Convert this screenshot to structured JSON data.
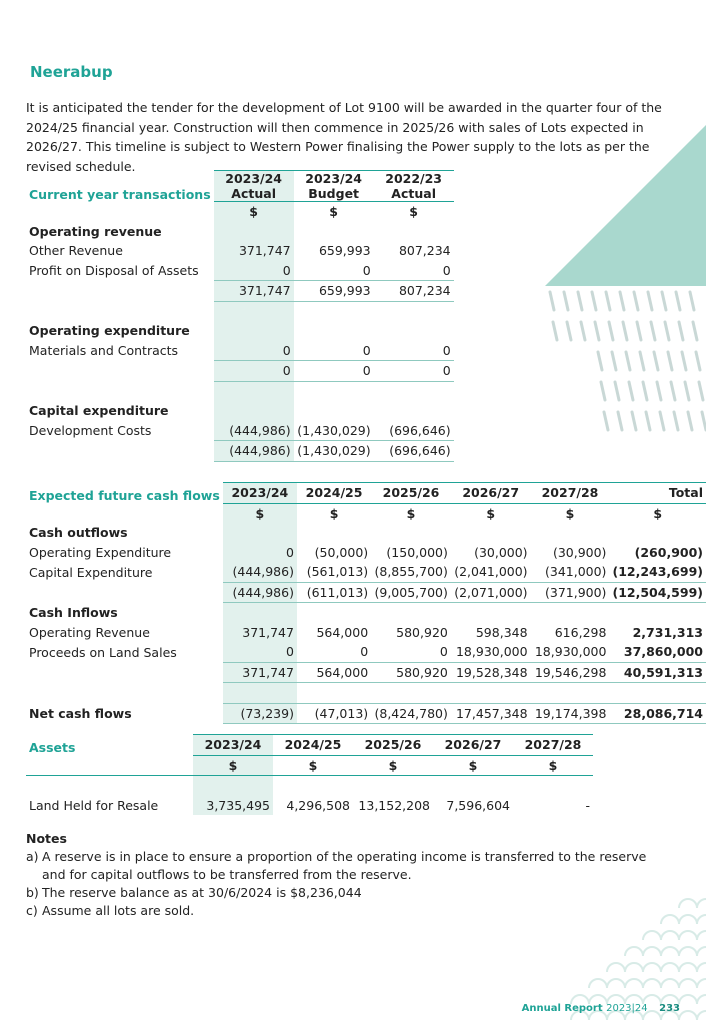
{
  "heading": "Neerabup",
  "intro": "It is anticipated the tender for the development of Lot 9100 will be awarded in the quarter four of the 2024/25 financial year.  Construction will then commence in 2025/26 with sales of Lots expected in 2026/27. This timeline is subject to Western Power finalising the Power supply to the lots as per the revised schedule.",
  "current": {
    "label": "Current year transactions",
    "columns": [
      {
        "year": "2023/24",
        "kind": "Actual"
      },
      {
        "year": "2023/24",
        "kind": "Budget"
      },
      {
        "year": "2022/23",
        "kind": "Actual"
      }
    ],
    "units": [
      "$",
      "$",
      "$"
    ],
    "sections": [
      {
        "heading": "Operating revenue",
        "rows": [
          {
            "label": "Other Revenue",
            "values": [
              "371,747",
              "659,993",
              "807,234"
            ]
          },
          {
            "label": "Profit on Disposal of Assets",
            "values": [
              "0",
              "0",
              "0"
            ]
          }
        ],
        "total": [
          "371,747",
          "659,993",
          "807,234"
        ]
      },
      {
        "heading": "Operating expenditure",
        "rows": [
          {
            "label": "Materials and Contracts",
            "values": [
              "0",
              "0",
              "0"
            ]
          }
        ],
        "total": [
          "0",
          "0",
          "0"
        ]
      },
      {
        "heading": "Capital expenditure",
        "rows": [
          {
            "label": "Development Costs",
            "values": [
              "(444,986)",
              "(1,430,029)",
              "(696,646)"
            ]
          }
        ],
        "total": [
          "(444,986)",
          "(1,430,029)",
          "(696,646)"
        ]
      }
    ]
  },
  "future": {
    "label": "Expected future cash flows",
    "columns": [
      "2023/24",
      "2024/25",
      "2025/26",
      "2026/27",
      "2027/28",
      "Total"
    ],
    "units": [
      "$",
      "$",
      "$",
      "$",
      "$",
      "$"
    ],
    "sections": [
      {
        "heading": "Cash outflows",
        "rows": [
          {
            "label": "Operating Expenditure",
            "values": [
              "0",
              "(50,000)",
              "(150,000)",
              "(30,000)",
              "(30,900)",
              "(260,900)"
            ]
          },
          {
            "label": "Capital Expenditure",
            "values": [
              "(444,986)",
              "(561,013)",
              "(8,855,700)",
              "(2,041,000)",
              "(341,000)",
              "(12,243,699)"
            ]
          }
        ],
        "total": [
          "(444,986)",
          "(611,013)",
          "(9,005,700)",
          "(2,071,000)",
          "(371,900)",
          "(12,504,599)"
        ]
      },
      {
        "heading": "Cash Inflows",
        "rows": [
          {
            "label": "Operating Revenue",
            "values": [
              "371,747",
              "564,000",
              "580,920",
              "598,348",
              "616,298",
              "2,731,313"
            ]
          },
          {
            "label": "Proceeds on Land Sales",
            "values": [
              "0",
              "0",
              "0",
              "18,930,000",
              "18,930,000",
              "37,860,000"
            ]
          }
        ],
        "total": [
          "371,747",
          "564,000",
          "580,920",
          "19,528,348",
          "19,546,298",
          "40,591,313"
        ]
      }
    ],
    "net": {
      "label": "Net cash flows",
      "values": [
        "(73,239)",
        "(47,013)",
        "(8,424,780)",
        "17,457,348",
        "19,174,398",
        "28,086,714"
      ]
    }
  },
  "assets": {
    "label": "Assets",
    "columns": [
      "2023/24",
      "2024/25",
      "2025/26",
      "2026/27",
      "2027/28"
    ],
    "units": [
      "$",
      "$",
      "$",
      "$",
      "$"
    ],
    "rows": [
      {
        "label": "Land Held for Resale",
        "values": [
          "3,735,495",
          "4,296,508",
          "13,152,208",
          "7,596,604",
          "-"
        ]
      }
    ]
  },
  "notes": {
    "title": "Notes",
    "items": [
      {
        "marker": "a)",
        "text": "A reserve is in place to ensure a proportion of the operating income is transferred to the reserve and for capital outflows to be transferred from the reserve."
      },
      {
        "marker": "b)",
        "text": "The reserve balance as at 30/6/2024 is $8,236,044"
      },
      {
        "marker": "c)",
        "text": "Assume all lots are sold."
      }
    ]
  },
  "footer": {
    "report": "Annual Report",
    "year": "2023|24",
    "page": "233"
  }
}
